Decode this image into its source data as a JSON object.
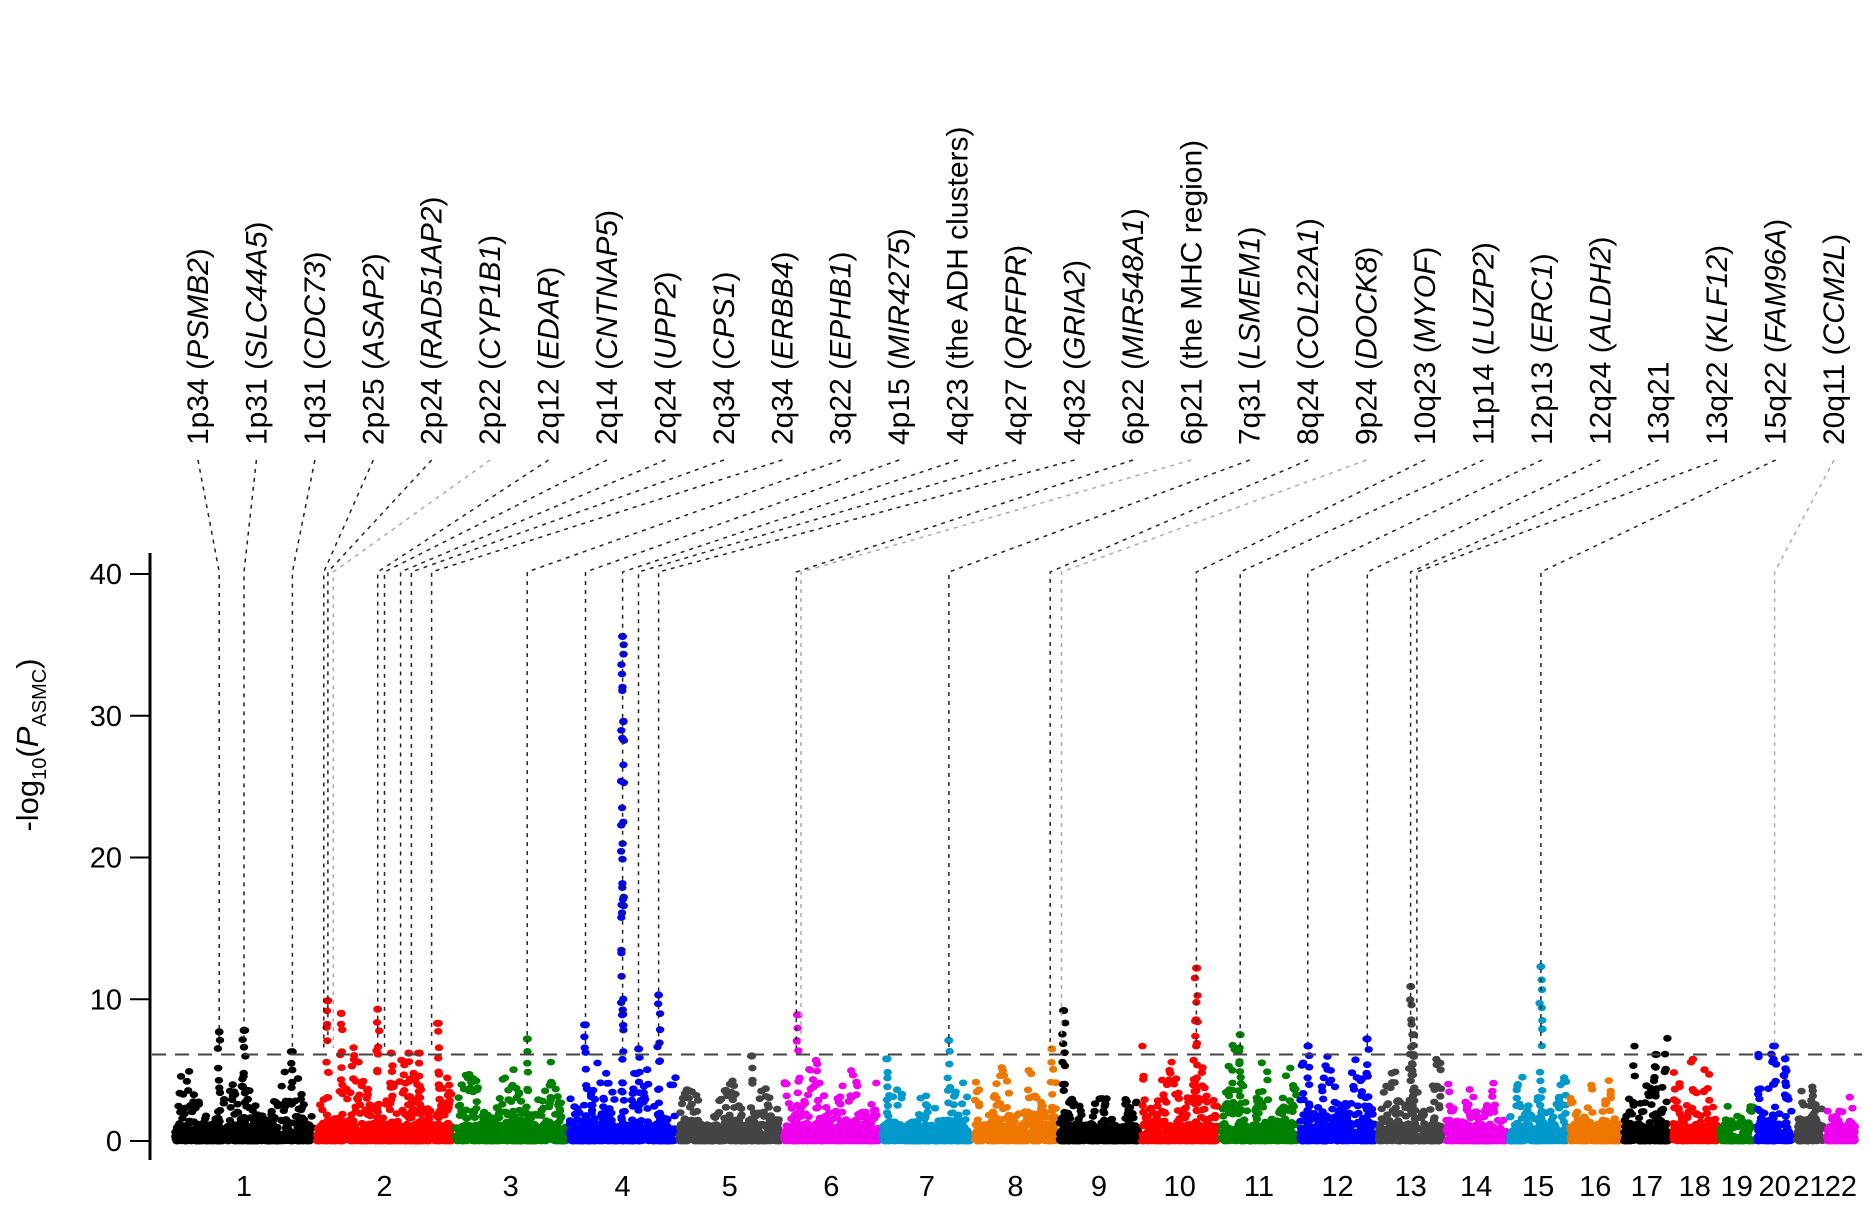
{
  "chart_data": {
    "type": "scatter",
    "subtype": "manhattan",
    "title": "",
    "xlabel": "",
    "ylabel": "-log10(P_ASMC)",
    "ylabel_parts": {
      "prefix": "-log",
      "sub1": "10",
      "open": "(",
      "italic": "P",
      "sub2": "ASMC",
      "close": ")"
    },
    "ylim": [
      0,
      40
    ],
    "yticks": [
      0,
      10,
      20,
      30,
      40
    ],
    "significance_threshold": 6.1,
    "grid": false,
    "legend": "none",
    "chromosomes": [
      {
        "name": "1",
        "color": "#000000",
        "size": 249,
        "peaks": [
          [
            0.32,
            7.7
          ],
          [
            0.5,
            7.8
          ],
          [
            0.85,
            6.3
          ]
        ],
        "base": 3.5
      },
      {
        "name": "2",
        "color": "#ff0000",
        "size": 243,
        "peaks": [
          [
            0.08,
            9.9
          ],
          [
            0.18,
            9.0
          ],
          [
            0.45,
            9.3
          ],
          [
            0.55,
            6.2
          ],
          [
            0.68,
            6.2
          ],
          [
            0.76,
            6.2
          ],
          [
            0.9,
            8.3
          ]
        ],
        "base": 4.5
      },
      {
        "name": "3",
        "color": "#008000",
        "size": 198,
        "peaks": [
          [
            0.65,
            7.2
          ]
        ],
        "base": 3.8
      },
      {
        "name": "4",
        "color": "#0000ff",
        "size": 191,
        "peaks": [
          [
            0.15,
            8.2
          ],
          [
            0.5,
            35.6
          ],
          [
            0.65,
            6.5
          ],
          [
            0.84,
            10.3
          ]
        ],
        "base": 4.0
      },
      {
        "name": "5",
        "color": "#444444",
        "size": 181,
        "peaks": [
          [
            0.72,
            6.0
          ]
        ],
        "base": 3.0
      },
      {
        "name": "6",
        "color": "#ee00ee",
        "size": 171,
        "peaks": [
          [
            0.15,
            8.9
          ]
        ],
        "base": 4.0
      },
      {
        "name": "7",
        "color": "#0099cc",
        "size": 159,
        "peaks": [
          [
            0.05,
            5.8
          ],
          [
            0.75,
            7.1
          ]
        ],
        "base": 3.0
      },
      {
        "name": "8",
        "color": "#ee7700",
        "size": 146,
        "peaks": [
          [
            0.95,
            6.5
          ]
        ],
        "base": 3.8
      },
      {
        "name": "9",
        "color": "#000000",
        "size": 141,
        "peaks": [
          [
            0.05,
            9.2
          ]
        ],
        "base": 2.5
      },
      {
        "name": "10",
        "color": "#ff0000",
        "size": 136,
        "peaks": [
          [
            0.72,
            12.2
          ]
        ],
        "base": 4.8
      },
      {
        "name": "11",
        "color": "#008000",
        "size": 135,
        "peaks": [
          [
            0.25,
            7.5
          ]
        ],
        "base": 5.0
      },
      {
        "name": "12",
        "color": "#0000ff",
        "size": 134,
        "peaks": [
          [
            0.1,
            6.7
          ],
          [
            0.9,
            7.2
          ]
        ],
        "base": 4.5
      },
      {
        "name": "13",
        "color": "#444444",
        "size": 115,
        "peaks": [
          [
            0.5,
            10.9
          ],
          [
            0.55,
            7.5
          ]
        ],
        "base": 4.5
      },
      {
        "name": "14",
        "color": "#ee00ee",
        "size": 107,
        "peaks": [],
        "base": 3.0
      },
      {
        "name": "15",
        "color": "#0099cc",
        "size": 102,
        "peaks": [
          [
            0.55,
            12.3
          ]
        ],
        "base": 3.5
      },
      {
        "name": "16",
        "color": "#ee7700",
        "size": 90,
        "peaks": [],
        "base": 3.0
      },
      {
        "name": "17",
        "color": "#000000",
        "size": 81,
        "peaks": [
          [
            0.7,
            6.1
          ]
        ],
        "base": 5.0
      },
      {
        "name": "18",
        "color": "#ff0000",
        "size": 78,
        "peaks": [],
        "base": 4.3
      },
      {
        "name": "19",
        "color": "#008000",
        "size": 59,
        "peaks": [],
        "base": 2.0
      },
      {
        "name": "20",
        "color": "#0000ff",
        "size": 63,
        "peaks": [
          [
            0.5,
            6.7
          ],
          [
            0.8,
            5.8
          ]
        ],
        "base": 4.5
      },
      {
        "name": "21",
        "color": "#444444",
        "size": 48,
        "peaks": [],
        "base": 3.2
      },
      {
        "name": "22",
        "color": "#ee00ee",
        "size": 51,
        "peaks": [],
        "base": 2.5
      }
    ],
    "annotations": [
      {
        "region": "1p34",
        "gene": "PSMB2",
        "italic": true,
        "chr": "1",
        "frac": 0.32,
        "style": "black"
      },
      {
        "region": "1p31",
        "gene": "SLC44A5",
        "italic": true,
        "chr": "1",
        "frac": 0.5,
        "style": "black"
      },
      {
        "region": "1q31",
        "gene": "CDC73",
        "italic": true,
        "chr": "1",
        "frac": 0.85,
        "style": "black"
      },
      {
        "region": "2p25",
        "gene": "ASAP2",
        "italic": true,
        "chr": "2",
        "frac": 0.05,
        "style": "black"
      },
      {
        "region": "2p24",
        "gene": "RAD51AP2",
        "italic": true,
        "chr": "2",
        "frac": 0.08,
        "style": "black"
      },
      {
        "region": "2p22",
        "gene": "CYP1B1",
        "italic": true,
        "chr": "2",
        "frac": 0.12,
        "style": "grey"
      },
      {
        "region": "2q12",
        "gene": "EDAR",
        "italic": true,
        "chr": "2",
        "frac": 0.45,
        "style": "black"
      },
      {
        "region": "2q14",
        "gene": "CNTNAP5",
        "italic": true,
        "chr": "2",
        "frac": 0.5,
        "style": "black"
      },
      {
        "region": "2q24",
        "gene": "UPP2",
        "italic": true,
        "chr": "2",
        "frac": 0.62,
        "style": "black"
      },
      {
        "region": "2q34",
        "gene": "CPS1",
        "italic": true,
        "chr": "2",
        "frac": 0.7,
        "style": "black"
      },
      {
        "region": "2q34",
        "gene": "ERBB4",
        "italic": true,
        "chr": "2",
        "frac": 0.85,
        "style": "black"
      },
      {
        "region": "3q22",
        "gene": "EPHB1",
        "italic": true,
        "chr": "3",
        "frac": 0.65,
        "style": "black"
      },
      {
        "region": "4p15",
        "gene": "MIR4275",
        "italic": true,
        "chr": "4",
        "frac": 0.15,
        "style": "black"
      },
      {
        "region": "4q23",
        "gene": "the ADH clusters",
        "italic": false,
        "chr": "4",
        "frac": 0.5,
        "style": "black"
      },
      {
        "region": "4q27",
        "gene": "QRFPR",
        "italic": true,
        "chr": "4",
        "frac": 0.65,
        "style": "black"
      },
      {
        "region": "4q32",
        "gene": "GRIA2",
        "italic": true,
        "chr": "4",
        "frac": 0.84,
        "style": "black"
      },
      {
        "region": "6p22",
        "gene": "MIR548A1",
        "italic": true,
        "chr": "6",
        "frac": 0.13,
        "style": "black"
      },
      {
        "region": "6p21",
        "gene": "the MHC region",
        "italic": false,
        "chr": "6",
        "frac": 0.18,
        "style": "grey"
      },
      {
        "region": "7q31",
        "gene": "LSMEM1",
        "italic": true,
        "chr": "7",
        "frac": 0.75,
        "style": "black"
      },
      {
        "region": "8q24",
        "gene": "COL22A1",
        "italic": true,
        "chr": "8",
        "frac": 0.93,
        "style": "black"
      },
      {
        "region": "9p24",
        "gene": "DOCK8",
        "italic": true,
        "chr": "9",
        "frac": 0.02,
        "style": "grey"
      },
      {
        "region": "10q23",
        "gene": "MYOF",
        "italic": true,
        "chr": "10",
        "frac": 0.72,
        "style": "black"
      },
      {
        "region": "11p14",
        "gene": "LUZP2",
        "italic": true,
        "chr": "11",
        "frac": 0.25,
        "style": "black"
      },
      {
        "region": "12p13",
        "gene": "ERC1",
        "italic": true,
        "chr": "12",
        "frac": 0.1,
        "style": "black"
      },
      {
        "region": "12q24",
        "gene": "ALDH2",
        "italic": true,
        "chr": "12",
        "frac": 0.9,
        "style": "black"
      },
      {
        "region": "13q21",
        "gene": "",
        "italic": false,
        "chr": "13",
        "frac": 0.5,
        "style": "black"
      },
      {
        "region": "13q22",
        "gene": "KLF12",
        "italic": true,
        "chr": "13",
        "frac": 0.6,
        "style": "black"
      },
      {
        "region": "15q22",
        "gene": "FAM96A",
        "italic": true,
        "chr": "15",
        "frac": 0.55,
        "style": "black"
      },
      {
        "region": "20q11",
        "gene": "CCM2L",
        "italic": true,
        "chr": "20",
        "frac": 0.5,
        "style": "grey"
      }
    ]
  }
}
